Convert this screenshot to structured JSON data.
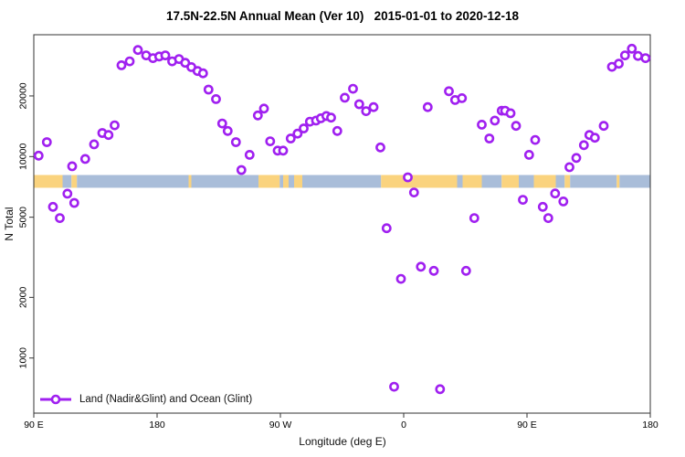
{
  "title": "17.5N-22.5N Annual Mean (Ver 10)   2015-01-01 to 2020-12-18",
  "legend": {
    "label": "Land (Nadir&Glint) and Ocean (Glint)"
  },
  "colors": {
    "marker": "#A020F0",
    "land_band": "#FAD37E",
    "ocean_band": "#A9BDD9",
    "axis": "#333333",
    "text": "#111111"
  },
  "chart_data": {
    "type": "scatter",
    "title": "17.5N-22.5N Annual Mean (Ver 10)   2015-01-01 to 2020-12-18",
    "xlabel": "Longitude (deg E)",
    "ylabel": "N Total",
    "y_scale": "log",
    "ylim": [
      533,
      40000
    ],
    "xlim_deg_east": [
      90,
      540
    ],
    "grid": false,
    "legend_position": "bottom-left-inside",
    "y_ticks": [
      {
        "value": 1000,
        "label": "1000"
      },
      {
        "value": 2000,
        "label": "2000"
      },
      {
        "value": 5000,
        "label": "5000"
      },
      {
        "value": 10000,
        "label": "10000"
      },
      {
        "value": 20000,
        "label": "20000"
      }
    ],
    "x_ticks": [
      {
        "lon": 90,
        "label": "90 E"
      },
      {
        "lon": 180,
        "label": "180"
      },
      {
        "lon": 270,
        "label": "90 W"
      },
      {
        "lon": 360,
        "label": "0"
      },
      {
        "lon": 450,
        "label": "90 E"
      },
      {
        "lon": 540,
        "label": "180"
      }
    ],
    "band": {
      "description": "land/ocean map strip of the 17.5N-22.5N latitude zone",
      "plotted_at_n": [
        7000,
        8100
      ],
      "segments": [
        {
          "from": 90,
          "to": 111,
          "surface": "land"
        },
        {
          "from": 111,
          "to": 117.5,
          "surface": "ocean"
        },
        {
          "from": 117.5,
          "to": 121.5,
          "surface": "land"
        },
        {
          "from": 121.5,
          "to": 203,
          "surface": "ocean"
        },
        {
          "from": 203,
          "to": 205,
          "surface": "land"
        },
        {
          "from": 205,
          "to": 254,
          "surface": "ocean"
        },
        {
          "from": 254,
          "to": 269.5,
          "surface": "land"
        },
        {
          "from": 269.5,
          "to": 272,
          "surface": "ocean"
        },
        {
          "from": 272,
          "to": 276,
          "surface": "land"
        },
        {
          "from": 276,
          "to": 280,
          "surface": "ocean"
        },
        {
          "from": 280,
          "to": 286,
          "surface": "land"
        },
        {
          "from": 286,
          "to": 343.5,
          "surface": "ocean"
        },
        {
          "from": 343.5,
          "to": 399,
          "surface": "land"
        },
        {
          "from": 399,
          "to": 403,
          "surface": "ocean"
        },
        {
          "from": 403,
          "to": 417,
          "surface": "land"
        },
        {
          "from": 417,
          "to": 431.5,
          "surface": "ocean"
        },
        {
          "from": 431.5,
          "to": 444,
          "surface": "land"
        },
        {
          "from": 444,
          "to": 455,
          "surface": "ocean"
        },
        {
          "from": 455,
          "to": 471,
          "surface": "land"
        },
        {
          "from": 471,
          "to": 477.5,
          "surface": "ocean"
        },
        {
          "from": 477.5,
          "to": 481.5,
          "surface": "land"
        },
        {
          "from": 481.5,
          "to": 515.5,
          "surface": "ocean"
        },
        {
          "from": 515.5,
          "to": 517.5,
          "surface": "land"
        },
        {
          "from": 517.5,
          "to": 540,
          "surface": "ocean"
        }
      ]
    },
    "points": [
      {
        "lon": 93.5,
        "n": 10100
      },
      {
        "lon": 99.5,
        "n": 11800
      },
      {
        "lon": 104,
        "n": 5630
      },
      {
        "lon": 109,
        "n": 4950
      },
      {
        "lon": 114.5,
        "n": 6540
      },
      {
        "lon": 118,
        "n": 8950
      },
      {
        "lon": 119.5,
        "n": 5890
      },
      {
        "lon": 127.5,
        "n": 9730
      },
      {
        "lon": 134,
        "n": 11500
      },
      {
        "lon": 140,
        "n": 13100
      },
      {
        "lon": 144.5,
        "n": 12800
      },
      {
        "lon": 149,
        "n": 14300
      },
      {
        "lon": 154,
        "n": 28400
      },
      {
        "lon": 160,
        "n": 29700
      },
      {
        "lon": 166,
        "n": 33800
      },
      {
        "lon": 172,
        "n": 31800
      },
      {
        "lon": 177,
        "n": 30800
      },
      {
        "lon": 181.5,
        "n": 31400
      },
      {
        "lon": 186,
        "n": 31800
      },
      {
        "lon": 191,
        "n": 29700
      },
      {
        "lon": 196,
        "n": 30500
      },
      {
        "lon": 200.5,
        "n": 29200
      },
      {
        "lon": 205,
        "n": 27800
      },
      {
        "lon": 209.5,
        "n": 26600
      },
      {
        "lon": 213.5,
        "n": 25900
      },
      {
        "lon": 217.5,
        "n": 21500
      },
      {
        "lon": 223,
        "n": 19300
      },
      {
        "lon": 227.5,
        "n": 14600
      },
      {
        "lon": 231.5,
        "n": 13400
      },
      {
        "lon": 237.5,
        "n": 11800
      },
      {
        "lon": 241.5,
        "n": 8580
      },
      {
        "lon": 247.5,
        "n": 10200
      },
      {
        "lon": 253.5,
        "n": 16000
      },
      {
        "lon": 258,
        "n": 17300
      },
      {
        "lon": 262.5,
        "n": 11900
      },
      {
        "lon": 268,
        "n": 10700
      },
      {
        "lon": 272,
        "n": 10700
      },
      {
        "lon": 277.5,
        "n": 12300
      },
      {
        "lon": 282.5,
        "n": 13000
      },
      {
        "lon": 287,
        "n": 13800
      },
      {
        "lon": 291.5,
        "n": 14900
      },
      {
        "lon": 296,
        "n": 15100
      },
      {
        "lon": 299.5,
        "n": 15500
      },
      {
        "lon": 303.5,
        "n": 15900
      },
      {
        "lon": 307,
        "n": 15600
      },
      {
        "lon": 311.5,
        "n": 13400
      },
      {
        "lon": 317,
        "n": 19600
      },
      {
        "lon": 323,
        "n": 21700
      },
      {
        "lon": 327.5,
        "n": 18200
      },
      {
        "lon": 332.5,
        "n": 16800
      },
      {
        "lon": 338,
        "n": 17600
      },
      {
        "lon": 343,
        "n": 11100
      },
      {
        "lon": 347.5,
        "n": 4410
      },
      {
        "lon": 353,
        "n": 720
      },
      {
        "lon": 358,
        "n": 2470
      },
      {
        "lon": 363,
        "n": 7890
      },
      {
        "lon": 367.5,
        "n": 6630
      },
      {
        "lon": 372.5,
        "n": 2840
      },
      {
        "lon": 377.5,
        "n": 17600
      },
      {
        "lon": 382,
        "n": 2710
      },
      {
        "lon": 386.5,
        "n": 700
      },
      {
        "lon": 393,
        "n": 21100
      },
      {
        "lon": 397.5,
        "n": 19100
      },
      {
        "lon": 402.5,
        "n": 19500
      },
      {
        "lon": 405.5,
        "n": 2710
      },
      {
        "lon": 411.5,
        "n": 4950
      },
      {
        "lon": 417,
        "n": 14400
      },
      {
        "lon": 422.5,
        "n": 12300
      },
      {
        "lon": 426.5,
        "n": 15100
      },
      {
        "lon": 431.5,
        "n": 16900
      },
      {
        "lon": 434,
        "n": 16900
      },
      {
        "lon": 438,
        "n": 16400
      },
      {
        "lon": 442,
        "n": 14200
      },
      {
        "lon": 447,
        "n": 6100
      },
      {
        "lon": 451.5,
        "n": 10200
      },
      {
        "lon": 456,
        "n": 12100
      },
      {
        "lon": 461.5,
        "n": 5630
      },
      {
        "lon": 465.5,
        "n": 4950
      },
      {
        "lon": 470.5,
        "n": 6560
      },
      {
        "lon": 476.5,
        "n": 5990
      },
      {
        "lon": 481,
        "n": 8860
      },
      {
        "lon": 486,
        "n": 9840
      },
      {
        "lon": 491.5,
        "n": 11400
      },
      {
        "lon": 495.5,
        "n": 12800
      },
      {
        "lon": 499.5,
        "n": 12400
      },
      {
        "lon": 506,
        "n": 14200
      },
      {
        "lon": 512,
        "n": 27900
      },
      {
        "lon": 517,
        "n": 28900
      },
      {
        "lon": 521.5,
        "n": 31800
      },
      {
        "lon": 526.5,
        "n": 34300
      },
      {
        "lon": 531,
        "n": 31600
      },
      {
        "lon": 536.5,
        "n": 30800
      }
    ]
  }
}
